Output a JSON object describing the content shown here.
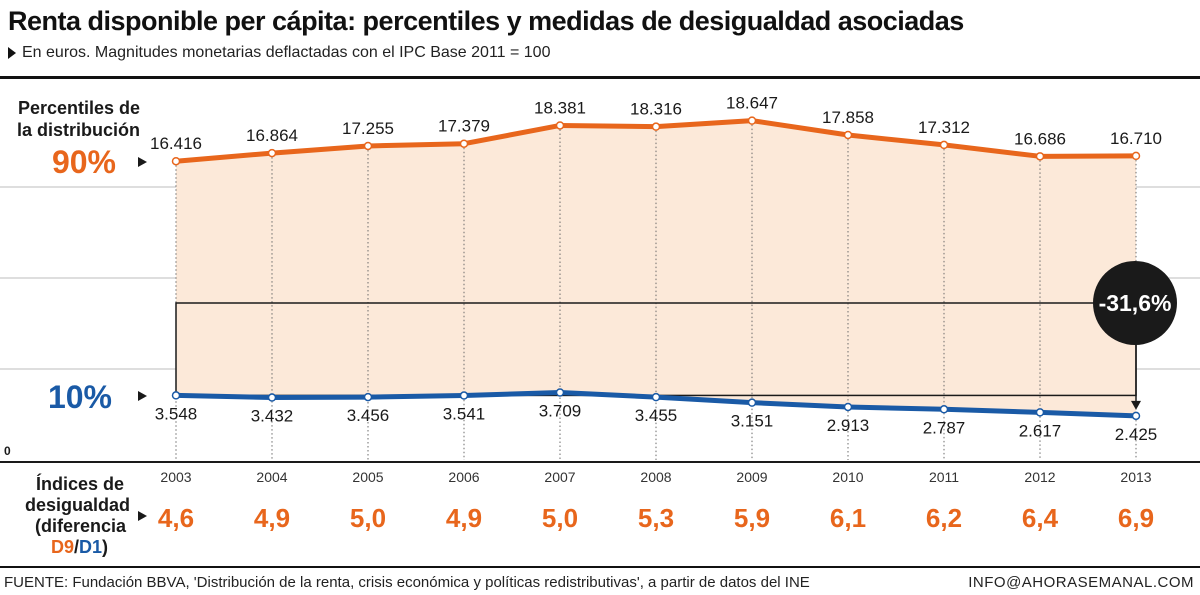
{
  "title": "Renta disponible per cápita: percentiles y medidas de desigualdad asociadas",
  "subtitle": "En euros. Magnitudes monetarias deflactadas con el IPC Base 2011 = 100",
  "labels": {
    "percentiles_line1": "Percentiles de",
    "percentiles_line2": "la distribución",
    "p90": "90%",
    "p10": "10%",
    "zero": "0",
    "ineq_line1": "Índices de",
    "ineq_line2": "desigualdad",
    "ineq_line3": "(diferencia",
    "ineq_d9": "D9",
    "ineq_slash": "/",
    "ineq_d1": "D1",
    "ineq_close": ")",
    "change": "-31,6%"
  },
  "colors": {
    "orange": "#e8661c",
    "blue": "#1a5aa6",
    "fill": "#fce9d9",
    "dark": "#1a1a1a"
  },
  "chart_data": {
    "type": "line",
    "x": [
      "2003",
      "2004",
      "2005",
      "2006",
      "2007",
      "2008",
      "2009",
      "2010",
      "2011",
      "2012",
      "2013"
    ],
    "series": [
      {
        "name": "90%",
        "values": [
          16416,
          16864,
          17255,
          17379,
          18381,
          18316,
          18647,
          17858,
          17312,
          16686,
          16710
        ],
        "labels": [
          "16.416",
          "16.864",
          "17.255",
          "17.379",
          "18.381",
          "18.316",
          "18.647",
          "17.858",
          "17.312",
          "16.686",
          "16.710"
        ]
      },
      {
        "name": "10%",
        "values": [
          3548,
          3432,
          3456,
          3541,
          3709,
          3455,
          3151,
          2913,
          2787,
          2617,
          2425
        ],
        "labels": [
          "3.548",
          "3.432",
          "3.456",
          "3.541",
          "3.709",
          "3.455",
          "3.151",
          "2.913",
          "2.787",
          "2.617",
          "2.425"
        ]
      }
    ],
    "inequality": [
      "4,6",
      "4,9",
      "5,0",
      "4,9",
      "5,0",
      "5,3",
      "5,9",
      "6,1",
      "6,2",
      "6,4",
      "6,9"
    ],
    "ylim": [
      0,
      20000
    ],
    "annotation": "-31,6%"
  },
  "footer": {
    "source": "FUENTE: Fundación BBVA, 'Distribución de la renta, crisis económica y políticas redistributivas', a partir de datos del INE",
    "credit": "INFO@AHORASEMANAL.COM"
  }
}
